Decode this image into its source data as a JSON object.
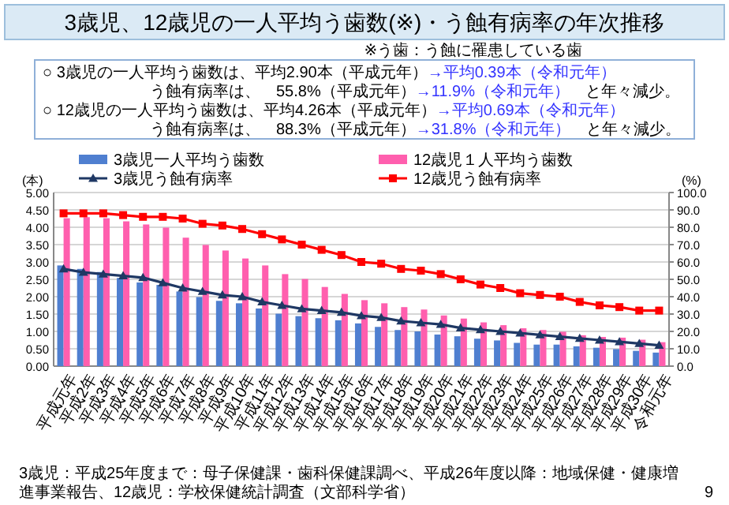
{
  "chart_data": {
    "type": "bar",
    "title": "3歳児、12歳児の一人平均う歯数(※)・う蝕有病率の年次推移",
    "subtitle": "※う歯：う蝕に罹患している歯",
    "annotations": [
      "○ 3歳児の一人平均う歯数は、平均2.90本（平成元年）→平均0.39本（令和元年）",
      "う蝕有病率は、　55.8%（平成元年）→11.9%（令和元年）　と年々減少。",
      "○ 12歳児の一人平均う歯数は、平均4.26本（平成元年）→平均0.69本（令和元年）",
      "う蝕有病率は、　88.3%（平成元年）→31.8%（令和元年）　と年々減少。",
      "3歳児：平成25年度まで：母子保健課・歯科保健課調べ、平成26年度以降：地域保健・健康増進事業報告、12歳児：学校保健統計調査（文部科学省）",
      "9"
    ],
    "ylabel": "(本)",
    "y2label": "(%)",
    "categories": [
      "平成元年",
      "平成2年",
      "平成3年",
      "平成4年",
      "平成5年",
      "平成6年",
      "平成7年",
      "平成8年",
      "平成9年",
      "平成10年",
      "平成11年",
      "平成12年",
      "平成13年",
      "平成14年",
      "平成15年",
      "平成16年",
      "平成17年",
      "平成18年",
      "平成19年",
      "平成20年",
      "平成21年",
      "平成22年",
      "平成23年",
      "平成24年",
      "平成25年",
      "平成26年",
      "平成27年",
      "平成28年",
      "平成29年",
      "平成30年",
      "令和元年"
    ],
    "series": [
      {
        "name": "3歳児一人平均う歯数",
        "color": "#4f7fd0",
        "values": [
          2.9,
          2.8,
          2.71,
          2.54,
          2.41,
          2.34,
          2.15,
          1.99,
          1.88,
          1.81,
          1.66,
          1.51,
          1.44,
          1.38,
          1.32,
          1.23,
          1.13,
          1.04,
          1.0,
          0.91,
          0.86,
          0.79,
          0.74,
          0.67,
          0.62,
          0.62,
          0.57,
          0.53,
          0.49,
          0.44,
          0.39
        ]
      },
      {
        "name": "12歳児１人平均う歯数",
        "color": "#ff5fae",
        "values": [
          4.26,
          4.29,
          4.26,
          4.17,
          4.08,
          3.99,
          3.7,
          3.49,
          3.33,
          3.1,
          2.9,
          2.65,
          2.51,
          2.28,
          2.08,
          1.9,
          1.81,
          1.7,
          1.63,
          1.46,
          1.37,
          1.26,
          1.18,
          1.09,
          1.04,
          0.99,
          0.89,
          0.84,
          0.82,
          0.76,
          0.69
        ]
      },
      {
        "name": "3歳児う蝕有病率",
        "type": "line",
        "axis": "y2",
        "marker": "triangle",
        "color": "#1f3864",
        "values": [
          56,
          54,
          53,
          52,
          51,
          48,
          45,
          43,
          41,
          40,
          37,
          35,
          33,
          32,
          31,
          29,
          28,
          26,
          25,
          24,
          22,
          21,
          20,
          19,
          18,
          17,
          16,
          15,
          14,
          13,
          12
        ]
      },
      {
        "name": "12歳児う蝕有病率",
        "type": "line",
        "axis": "y2",
        "marker": "square",
        "color": "#ff0000",
        "values": [
          88,
          88,
          88,
          87,
          86,
          86,
          85,
          82,
          81,
          79,
          76,
          73,
          70,
          67,
          64,
          60,
          59,
          56,
          55,
          53,
          50,
          47,
          45,
          42,
          41,
          40,
          37,
          35,
          34,
          32,
          32
        ]
      }
    ],
    "ylim": [
      0,
      5
    ],
    "yticks": [
      {
        "value": 0,
        "label": "0.00"
      },
      {
        "value": 0.5,
        "label": "0.50"
      },
      {
        "value": 1,
        "label": "1.00"
      },
      {
        "value": 1.5,
        "label": "1.50"
      },
      {
        "value": 2,
        "label": "2.00"
      },
      {
        "value": 2.5,
        "label": "2.50"
      },
      {
        "value": 3,
        "label": "3.00"
      },
      {
        "value": 3.5,
        "label": "3.50"
      },
      {
        "value": 4,
        "label": "4.00"
      },
      {
        "value": 4.5,
        "label": "4.50"
      },
      {
        "value": 5,
        "label": "5.00"
      }
    ],
    "y2lim": [
      0,
      100
    ],
    "y2ticks": [
      {
        "value": 0,
        "label": "0.0"
      },
      {
        "value": 10,
        "label": "10.0"
      },
      {
        "value": 20,
        "label": "20.0"
      },
      {
        "value": 30,
        "label": "30.0"
      },
      {
        "value": 40,
        "label": "40.0"
      },
      {
        "value": 50,
        "label": "50.0"
      },
      {
        "value": 60,
        "label": "60.0"
      },
      {
        "value": 70,
        "label": "70.0"
      },
      {
        "value": 80,
        "label": "80.0"
      },
      {
        "value": 90,
        "label": "90.0"
      },
      {
        "value": 100,
        "label": "100.0"
      }
    ],
    "grid": "y",
    "legend": "top",
    "line_style": "solid"
  }
}
